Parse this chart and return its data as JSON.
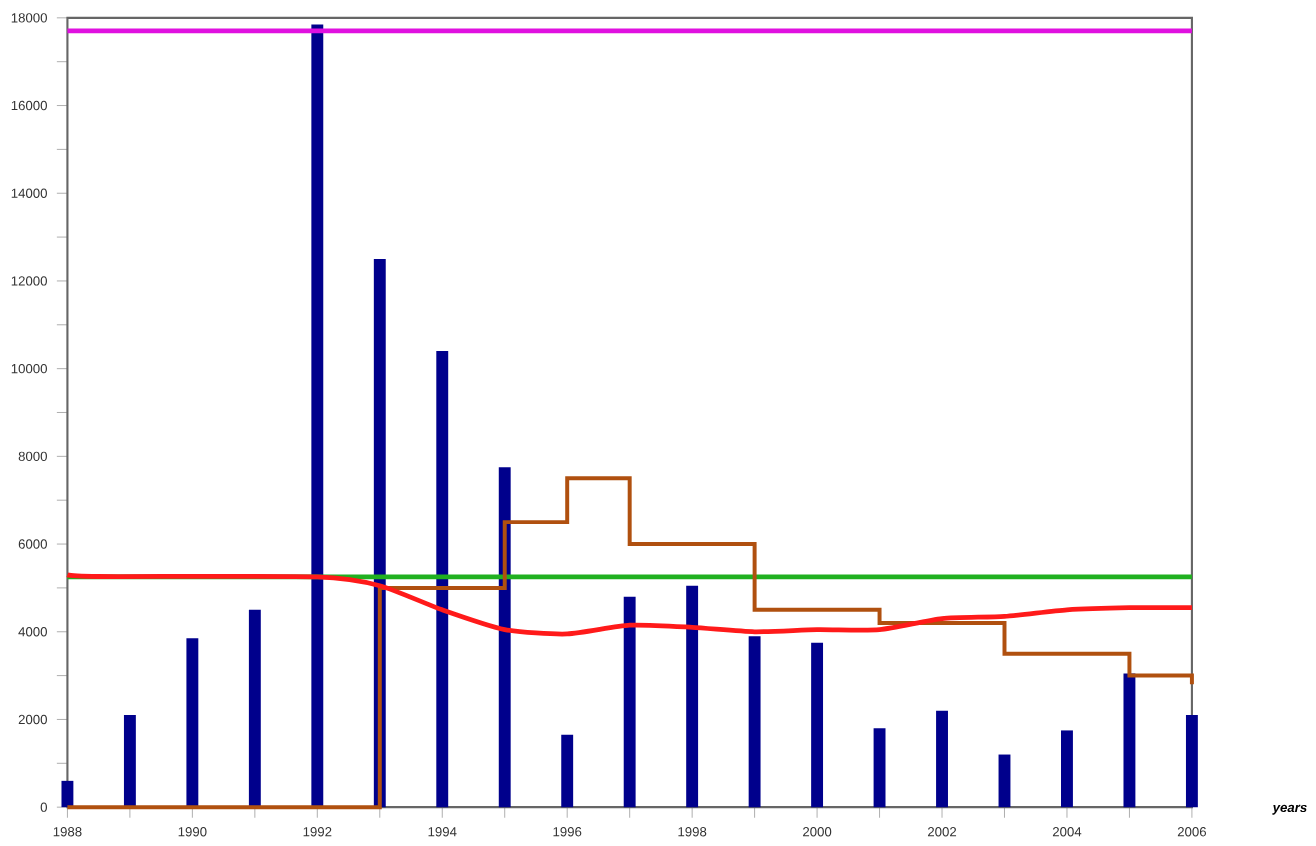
{
  "chart_data": {
    "type": "bar",
    "xlabel": "years",
    "xlim": [
      1988,
      2006
    ],
    "ylim": [
      0,
      18000
    ],
    "xticks": [
      1988,
      {
        "value": 1989,
        "label": null
      },
      1990,
      {
        "value": 1991,
        "label": null
      },
      1992,
      {
        "value": 1993,
        "label": null
      },
      1994,
      {
        "value": 1995,
        "label": null
      },
      1996,
      {
        "value": 1997,
        "label": null
      },
      1998,
      {
        "value": 1999,
        "label": null
      },
      2000,
      {
        "value": 2001,
        "label": null
      },
      2002,
      {
        "value": 2003,
        "label": null
      },
      2004,
      {
        "value": 2005,
        "label": null
      },
      2006
    ],
    "yticks": [
      0,
      {
        "value": 1000,
        "label": null
      },
      2000,
      {
        "value": 3000,
        "label": null
      },
      4000,
      {
        "value": 5000,
        "label": null
      },
      6000,
      {
        "value": 7000,
        "label": null
      },
      8000,
      {
        "value": 9000,
        "label": null
      },
      10000,
      {
        "value": 11000,
        "label": null
      },
      12000,
      {
        "value": 13000,
        "label": null
      },
      14000,
      {
        "value": 15000,
        "label": null
      },
      16000,
      {
        "value": 17000,
        "label": null
      },
      18000
    ],
    "ref_lines": [
      {
        "axis": "y",
        "value": 17700,
        "color": "#e010e0"
      },
      {
        "axis": "y",
        "value": 5250,
        "color": "#20b020"
      }
    ],
    "series": [
      {
        "color": "#00008c",
        "x": [
          1988,
          1989,
          1990,
          1991,
          1992,
          1993,
          1994,
          1995,
          1996,
          1997,
          1998,
          1999,
          2000,
          2001,
          2002,
          2003,
          2004,
          2005,
          2006
        ],
        "values": [
          600,
          2100,
          3850,
          4500,
          17850,
          12500,
          10400,
          7750,
          1650,
          4800,
          5050,
          3900,
          3750,
          1800,
          2200,
          1200,
          1750,
          3050,
          2100
        ]
      },
      {
        "type": "step",
        "color": "#b0500f",
        "x": [
          1988,
          1989,
          1990,
          1991,
          1992,
          1993,
          1994,
          1995,
          1996,
          1997,
          1998,
          1999,
          2000,
          2001,
          2002,
          2003,
          2004,
          2005,
          2006
        ],
        "values": [
          0,
          0,
          0,
          0,
          0,
          5000,
          5000,
          6500,
          7500,
          6000,
          6000,
          4500,
          4500,
          4200,
          4200,
          3500,
          3500,
          3000,
          2800
        ]
      },
      {
        "type": "line",
        "color": "#ff1a1a",
        "x": [
          1988,
          1988.5,
          1992,
          1993,
          1994,
          1995,
          1996,
          1997,
          1998,
          1999,
          2000,
          2001,
          2002,
          2003,
          2004,
          2005,
          2006
        ],
        "values": [
          5300,
          5260,
          5250,
          5050,
          4500,
          4050,
          3950,
          4150,
          4100,
          4000,
          4050,
          4050,
          4300,
          4350,
          4500,
          4550,
          4550
        ]
      }
    ]
  }
}
